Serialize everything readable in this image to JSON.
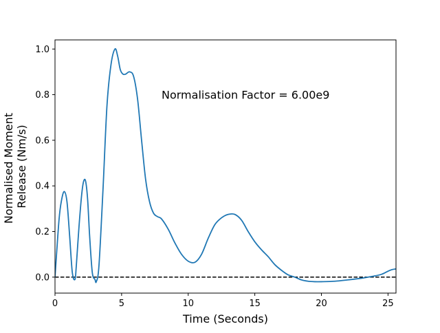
{
  "chart_data": {
    "type": "line",
    "title": "",
    "xlabel": "Time (Seconds)",
    "ylabel_lines": [
      "Normalised Moment",
      "Release (Nm/s)"
    ],
    "xlim": [
      0,
      25.6
    ],
    "ylim": [
      -0.07,
      1.04
    ],
    "xticks": [
      0,
      5,
      10,
      15,
      20,
      25
    ],
    "yticks": [
      0.0,
      0.2,
      0.4,
      0.6,
      0.8,
      1.0
    ],
    "xtick_labels": [
      "0",
      "5",
      "10",
      "15",
      "20",
      "25"
    ],
    "ytick_labels": [
      "0.0",
      "0.2",
      "0.4",
      "0.6",
      "0.8",
      "1.0"
    ],
    "grid": false,
    "annotation": {
      "text": "Normalisation Factor = 6.00e9",
      "x": 8.0,
      "y": 0.8
    },
    "reference_line": {
      "y": 0.0,
      "style": "dashed",
      "color": "#000000"
    },
    "series": [
      {
        "color": "#1f77b4",
        "x": [
          0,
          0.3,
          0.5,
          0.7,
          0.9,
          1.1,
          1.3,
          1.5,
          1.6,
          1.8,
          2.0,
          2.15,
          2.3,
          2.45,
          2.6,
          2.8,
          3.0,
          3.1,
          3.3,
          3.6,
          3.9,
          4.2,
          4.5,
          4.7,
          4.9,
          5.1,
          5.3,
          5.6,
          5.9,
          6.2,
          6.5,
          6.8,
          7.1,
          7.4,
          7.7,
          8.0,
          8.5,
          9.0,
          9.5,
          10.0,
          10.5,
          11.0,
          11.5,
          12.0,
          12.5,
          13.0,
          13.5,
          14.0,
          14.5,
          15.0,
          15.5,
          16.0,
          16.5,
          17.0,
          17.5,
          18.0,
          18.5,
          19.0,
          19.5,
          20.0,
          21.0,
          22.0,
          23.0,
          23.8,
          24.5,
          25.0,
          25.3,
          25.6
        ],
        "y": [
          0.0,
          0.25,
          0.34,
          0.375,
          0.33,
          0.18,
          0.02,
          -0.01,
          0.05,
          0.22,
          0.36,
          0.42,
          0.42,
          0.34,
          0.18,
          0.02,
          -0.01,
          -0.02,
          0.05,
          0.38,
          0.75,
          0.93,
          1.0,
          0.97,
          0.91,
          0.89,
          0.89,
          0.9,
          0.88,
          0.78,
          0.6,
          0.43,
          0.33,
          0.28,
          0.265,
          0.255,
          0.21,
          0.15,
          0.1,
          0.07,
          0.065,
          0.1,
          0.17,
          0.23,
          0.26,
          0.275,
          0.275,
          0.25,
          0.2,
          0.155,
          0.12,
          0.09,
          0.055,
          0.03,
          0.01,
          0.0,
          -0.012,
          -0.018,
          -0.02,
          -0.02,
          -0.018,
          -0.012,
          -0.005,
          0.003,
          0.012,
          0.026,
          0.033,
          0.036
        ]
      }
    ]
  }
}
